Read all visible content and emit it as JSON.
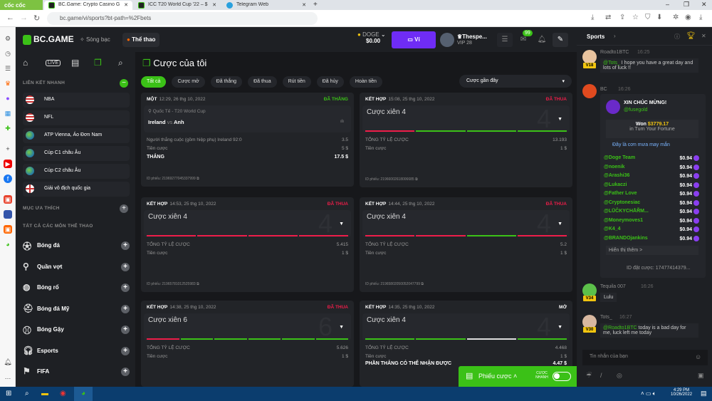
{
  "browser": {
    "brand": "cốc cốc",
    "tabs": [
      {
        "title": "BC.Game: Crypto Casino Gam"
      },
      {
        "title": "ICC T20 World Cup '22 – $50"
      },
      {
        "title": "Telegram Web"
      }
    ],
    "url": "bc.game/vi/sports?bt-path=%2Fbets"
  },
  "header": {
    "logo": "BC.GAME",
    "nav": [
      {
        "label": "Sòng bạc"
      },
      {
        "label": "Thể thao"
      }
    ],
    "currency": "DOGE",
    "balance": "$0.00",
    "wallet_label": "Ví",
    "username": "Thespe...",
    "vip": "VIP 28",
    "mail_badge": "99"
  },
  "leftnav": {
    "quick_links_title": "LIÊN KẾT NHANH",
    "quick_links": [
      {
        "label": "NBA",
        "flag": "us"
      },
      {
        "label": "NFL",
        "flag": "us"
      },
      {
        "label": "ATP Vienna, Áo Đơn Nam",
        "flag": "world"
      },
      {
        "label": "Cúp C1 châu Âu",
        "flag": "world"
      },
      {
        "label": "Cúp C2 châu Âu",
        "flag": "world"
      },
      {
        "label": "Giải vô địch quốc gia",
        "flag": "england"
      }
    ],
    "favorites_title": "MỤC ƯA THÍCH",
    "all_sports_title": "TẤT CẢ CÁC MÔN THỂ THAO",
    "sports": [
      {
        "label": "Bóng đá",
        "icon": "soccer-icon"
      },
      {
        "label": "Quần vợt",
        "icon": "tennis-icon"
      },
      {
        "label": "Bóng rổ",
        "icon": "basketball-icon"
      },
      {
        "label": "Bóng đá Mỹ",
        "icon": "american-football-icon"
      },
      {
        "label": "Bóng Gậy",
        "icon": "baseball-icon"
      },
      {
        "label": "Esports",
        "icon": "headset-icon"
      },
      {
        "label": "FIFA",
        "icon": "fifa-icon"
      }
    ]
  },
  "main": {
    "title": "Cược của tôi",
    "filters": [
      {
        "label": "Tất cả",
        "active": true
      },
      {
        "label": "Cược mở"
      },
      {
        "label": "Đã thắng"
      },
      {
        "label": "Đã thua"
      },
      {
        "label": "Rút tiền"
      },
      {
        "label": "Đã hủy"
      },
      {
        "label": "Hoàn tiền"
      }
    ],
    "sort": "Cược gần đây",
    "single": {
      "type": "MỘT",
      "time": "12:29, 26 thg 10, 2022",
      "status": "ĐÃ THẮNG",
      "league": "Quốc Tế - T20 World Cup",
      "home": "Ireland",
      "vs": "vs",
      "away": "Anh",
      "market": "Người thắng cuộc (gồm hiệp phụ) Ireland  92:0",
      "odds": "3.5",
      "stake_label": "Tiền cược",
      "stake": "5 $",
      "win_label": "THẮNG",
      "win": "17.5 $",
      "ticket": "ID phiếu: 21969277045337999"
    },
    "combos": [
      {
        "type": "KẾT HỢP",
        "time": "15:08, 25 thg 10, 2022",
        "status": "ĐÃ THUA",
        "title": "Cược xiên 4",
        "legs": 4,
        "legs_result": [
          "lost",
          "won",
          "won",
          "won"
        ],
        "odds_label": "TỔNG TỶ LỆ CƯỢC",
        "odds": "13.193",
        "stake_label": "Tiền cược",
        "stake": "1 $",
        "ticket": "ID phiếu: 21966002618006685"
      },
      {
        "type": "KẾT HỢP",
        "time": "14:53, 25 thg 10, 2022",
        "status": "ĐÃ THUA",
        "title": "Cược xiên 4",
        "legs": 4,
        "legs_result": [
          "lost",
          "lost",
          "lost",
          "lost"
        ],
        "odds_label": "TỔNG TỶ LỆ CƯỢC",
        "odds": "5.415",
        "stake_label": "Tiền cược",
        "stake": "1 $",
        "ticket": "ID phiếu: 21965781012525983"
      },
      {
        "type": "KẾT HỢP",
        "time": "14:44, 25 thg 10, 2022",
        "status": "ĐÃ THUA",
        "title": "Cược xiên 4",
        "legs": 4,
        "legs_result": [
          "lost",
          "lost",
          "won",
          "lost"
        ],
        "odds_label": "TỔNG TỶ LỆ CƯỢC",
        "odds": "5.2",
        "stake_label": "Tiền cược",
        "stake": "1 $",
        "ticket": "ID phiếu: 21965802050052047799"
      },
      {
        "type": "KẾT HỢP",
        "time": "14:38, 25 thg 10, 2022",
        "status": "ĐÃ THUA",
        "title": "Cược xiên 6",
        "legs": 6,
        "legs_result": [
          "lost",
          "won",
          "won",
          "won",
          "won",
          "won"
        ],
        "odds_label": "TỔNG TỶ LỆ CƯỢC",
        "odds": "5.626",
        "stake_label": "Tiền cược",
        "stake": "1 $"
      },
      {
        "type": "KẾT HỢP",
        "time": "14:35, 25 thg 10, 2022",
        "status": "MỞ",
        "title": "Cược xiên 4",
        "legs": 4,
        "legs_result": [
          "won",
          "won",
          "open",
          "won"
        ],
        "odds_label": "TỔNG TỶ LỆ CƯỢC",
        "odds": "4.468",
        "stake_label": "Tiền cược",
        "stake": "1 $",
        "potential_label": "PHẦN THẮNG CÓ THỂ NHẬN ĐƯỢC",
        "potential": "4.47 $"
      }
    ],
    "betslip": {
      "label": "Phiếu cược",
      "quick_label": "CƯỢC NHANH"
    }
  },
  "colors": {
    "green": "#3bc117",
    "red": "#ed1d49",
    "purple": "#6f2cf5"
  },
  "chat": {
    "title": "Sports",
    "m1": {
      "user": "Roadto1BTC",
      "time": "16:25",
      "level": "V18",
      "mention": "@Tots_",
      "text": "I hope you have a great day and lots of luck !!"
    },
    "m2": {
      "user": "BC",
      "time": "16:26",
      "congrats": "XIN CHÚC MỪNG!",
      "winner": "@fusegold",
      "won_label": "Won",
      "amount": "$3779.17",
      "game": "in Turn Your Fortune",
      "rain": "Đây là cơn mưa may mắn",
      "recipients": [
        {
          "name": "@Doge Team",
          "amt": "$0.94"
        },
        {
          "name": "@noenik",
          "amt": "$0.94"
        },
        {
          "name": "@Arashi36",
          "amt": "$0.94"
        },
        {
          "name": "@Lukaczi",
          "amt": "$0.94"
        },
        {
          "name": "@Father Love",
          "amt": "$0.94"
        },
        {
          "name": "@Cryptonesiac",
          "amt": "$0.94"
        },
        {
          "name": "@LŪČKYCHĀŘM...",
          "amt": "$0.94"
        },
        {
          "name": "@Moneymoves1",
          "amt": "$0.94"
        },
        {
          "name": "@K4_4",
          "amt": "$0.94"
        },
        {
          "name": "@BRANDOjankins",
          "amt": "$0.94"
        }
      ],
      "show_more": "Hiển thị thêm >",
      "bet_id": "ID đặt cược: 17477414379..."
    },
    "m3": {
      "user": "Tequila 007",
      "time": "16:26",
      "level": "V34",
      "text": "Lulu"
    },
    "m4": {
      "user": "Tots_",
      "time": "16:27",
      "level": "V30",
      "mention": "@Roadto1BTC",
      "text": "today is a bad day for me, luck left me today"
    },
    "input_placeholder": "Tin nhắn của bạn"
  },
  "taskbar": {
    "time": "4:29 PM",
    "date": "10/26/2022"
  }
}
